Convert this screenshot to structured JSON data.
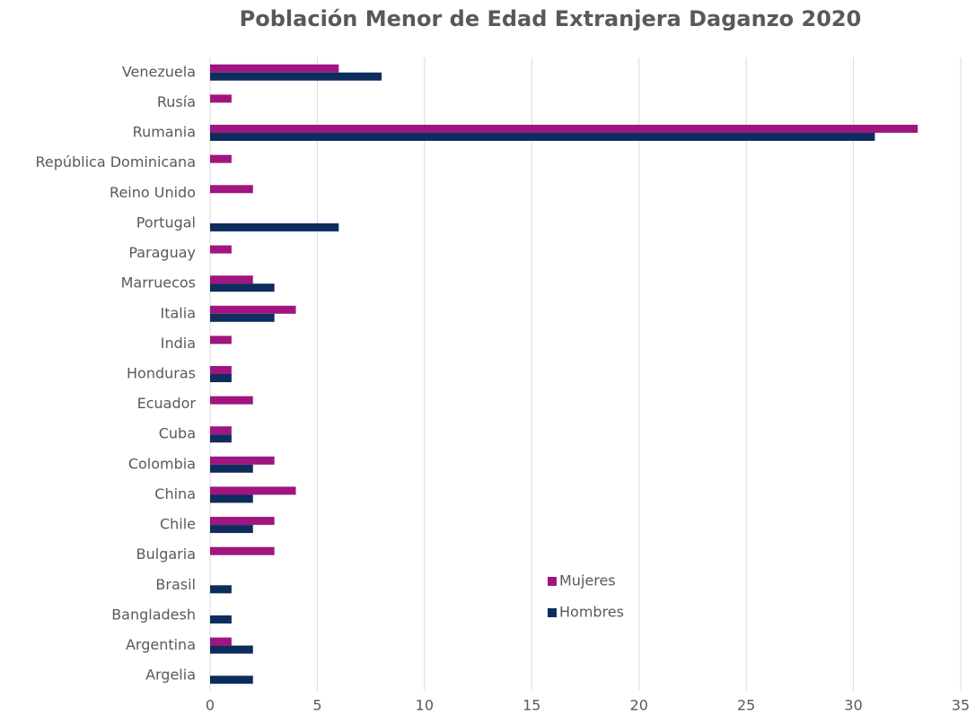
{
  "chart_data": {
    "type": "bar",
    "orientation": "horizontal",
    "title": "Población Menor de Edad Extranjera Daganzo 2020",
    "categories": [
      "Venezuela",
      "Rusía",
      "Rumania",
      "República Dominicana",
      "Reino Unido",
      "Portugal",
      "Paraguay",
      "Marruecos",
      "Italia",
      "India",
      "Honduras",
      "Ecuador",
      "Cuba",
      "Colombia",
      "China",
      "Chile",
      "Bulgaria",
      "Brasil",
      "Bangladesh",
      "Argentina",
      "Argelia"
    ],
    "series": [
      {
        "name": "Mujeres",
        "color": "#a0157f",
        "values": [
          6,
          1,
          33,
          1,
          2,
          0,
          1,
          2,
          4,
          1,
          1,
          2,
          1,
          3,
          4,
          3,
          3,
          0,
          0,
          1,
          0
        ]
      },
      {
        "name": "Hombres",
        "color": "#0d2d5e",
        "values": [
          8,
          0,
          31,
          0,
          0,
          6,
          0,
          3,
          3,
          0,
          1,
          0,
          1,
          2,
          2,
          2,
          0,
          1,
          1,
          2,
          2
        ]
      }
    ],
    "xlim": [
      0,
      35
    ],
    "xticks": [
      0,
      5,
      10,
      15,
      20,
      25,
      30,
      35
    ],
    "grid": true,
    "legend": "lower-center"
  }
}
